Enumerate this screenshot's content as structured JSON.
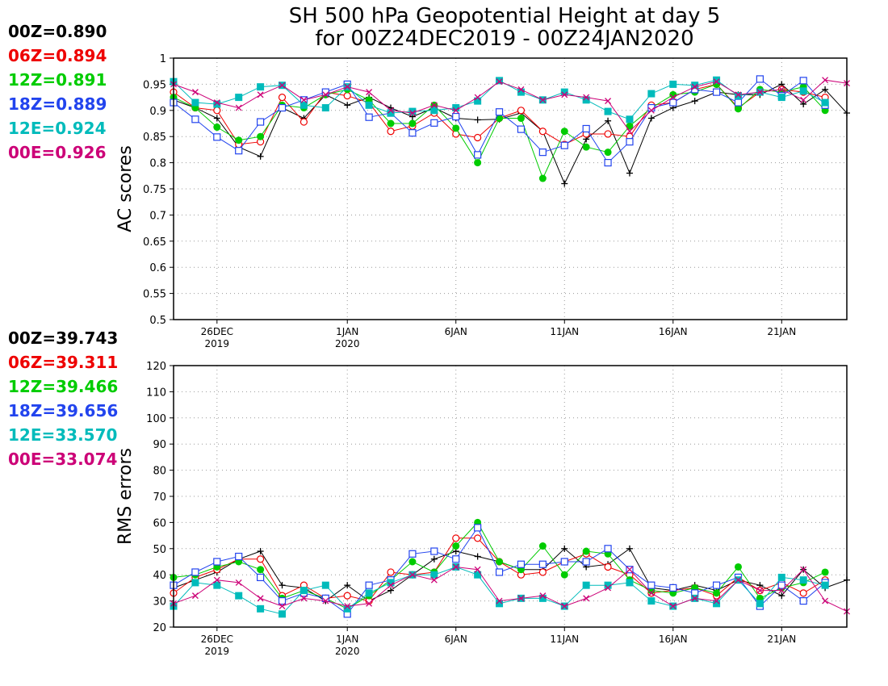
{
  "title": {
    "line1": "SH 500 hPa Geopotential Height at day 5",
    "line2": "for 00Z24DEC2019 - 00Z24JAN2020"
  },
  "colors": {
    "00Z": "#000000",
    "06Z": "#ee0000",
    "12Z": "#00cc00",
    "18Z": "#2244ee",
    "12E": "#00bbbb",
    "00E": "#cc0077"
  },
  "legend_top": [
    {
      "key": "00Z",
      "text": "00Z=0.890"
    },
    {
      "key": "06Z",
      "text": "06Z=0.894"
    },
    {
      "key": "12Z",
      "text": "12Z=0.891"
    },
    {
      "key": "18Z",
      "text": "18Z=0.889"
    },
    {
      "key": "12E",
      "text": "12E=0.924"
    },
    {
      "key": "00E",
      "text": "00E=0.926"
    }
  ],
  "legend_bottom": [
    {
      "key": "00Z",
      "text": "00Z=39.743"
    },
    {
      "key": "06Z",
      "text": "06Z=39.311"
    },
    {
      "key": "12Z",
      "text": "12Z=39.466"
    },
    {
      "key": "18Z",
      "text": "18Z=39.656"
    },
    {
      "key": "12E",
      "text": "12E=33.570"
    },
    {
      "key": "00E",
      "text": "00E=33.074"
    }
  ],
  "chart_data": [
    {
      "type": "line",
      "ylabel": "AC scores",
      "ylim": [
        0.5,
        1.0
      ],
      "yticks": [
        0.5,
        0.55,
        0.6,
        0.65,
        0.7,
        0.75,
        0.8,
        0.85,
        0.9,
        0.95,
        1
      ],
      "ytick_labels": [
        "0.5",
        "0.55",
        "0.6",
        "0.65",
        "0.7",
        "0.75",
        "0.8",
        "0.85",
        "0.9",
        "0.95",
        "1"
      ],
      "xlim": [
        24,
        55
      ],
      "xticks": [
        {
          "x": 26,
          "l1": "26DEC",
          "l2": "2019"
        },
        {
          "x": 32,
          "l1": "1JAN",
          "l2": "2020"
        },
        {
          "x": 37,
          "l1": "6JAN",
          "l2": ""
        },
        {
          "x": 42,
          "l1": "11JAN",
          "l2": ""
        },
        {
          "x": 47,
          "l1": "16JAN",
          "l2": ""
        },
        {
          "x": 52,
          "l1": "21JAN",
          "l2": ""
        }
      ],
      "grid": true,
      "series": [
        {
          "name": "00Z",
          "marker": "plus",
          "x": [
            24,
            25,
            26,
            27,
            28,
            29,
            30,
            31,
            32,
            33,
            34,
            35,
            36,
            37,
            38,
            39,
            40,
            41,
            42,
            43,
            44,
            45,
            46,
            47,
            48,
            49,
            50,
            51,
            52,
            53,
            54,
            55
          ],
          "values": [
            0.92,
            0.905,
            0.885,
            0.83,
            0.812,
            0.905,
            0.885,
            0.93,
            0.91,
            0.925,
            0.905,
            0.888,
            0.905,
            0.885,
            0.882,
            0.883,
            0.895,
            0.86,
            0.76,
            0.845,
            0.88,
            0.78,
            0.885,
            0.905,
            0.918,
            0.935,
            0.93,
            0.93,
            0.95,
            0.912,
            0.94,
            0.895
          ]
        },
        {
          "name": "06Z",
          "marker": "circle",
          "x": [
            24,
            25,
            26,
            27,
            28,
            29,
            30,
            31,
            32,
            33,
            34,
            35,
            36,
            37,
            38,
            39,
            40,
            41,
            42,
            43,
            44,
            45,
            46,
            47,
            48,
            49,
            50,
            51,
            52,
            53,
            54
          ],
          "values": [
            0.935,
            0.905,
            0.9,
            0.835,
            0.84,
            0.925,
            0.878,
            0.935,
            0.928,
            0.915,
            0.86,
            0.87,
            0.895,
            0.855,
            0.848,
            0.885,
            0.9,
            0.86,
            0.835,
            0.855,
            0.855,
            0.85,
            0.91,
            0.915,
            0.94,
            0.95,
            0.905,
            0.935,
            0.94,
            0.935,
            0.925
          ]
        },
        {
          "name": "12Z",
          "marker": "dot",
          "x": [
            24,
            25,
            26,
            27,
            28,
            29,
            30,
            31,
            32,
            33,
            34,
            35,
            36,
            37,
            38,
            39,
            40,
            41,
            42,
            43,
            44,
            45,
            46,
            47,
            48,
            49,
            50,
            51,
            52,
            53,
            54
          ],
          "values": [
            0.925,
            0.905,
            0.868,
            0.843,
            0.85,
            0.91,
            0.905,
            0.93,
            0.94,
            0.92,
            0.875,
            0.875,
            0.91,
            0.866,
            0.8,
            0.885,
            0.885,
            0.77,
            0.86,
            0.83,
            0.82,
            0.87,
            0.905,
            0.93,
            0.935,
            0.95,
            0.903,
            0.94,
            0.935,
            0.945,
            0.9
          ]
        },
        {
          "name": "18Z",
          "marker": "square",
          "x": [
            24,
            25,
            26,
            27,
            28,
            29,
            30,
            31,
            32,
            33,
            34,
            35,
            36,
            37,
            38,
            39,
            40,
            41,
            42,
            43,
            44,
            45,
            46,
            47,
            48,
            49,
            50,
            51,
            52,
            53,
            54
          ],
          "values": [
            0.915,
            0.883,
            0.849,
            0.823,
            0.878,
            0.905,
            0.92,
            0.935,
            0.95,
            0.887,
            0.895,
            0.857,
            0.876,
            0.888,
            0.815,
            0.897,
            0.864,
            0.82,
            0.833,
            0.865,
            0.8,
            0.84,
            0.905,
            0.915,
            0.94,
            0.935,
            0.915,
            0.96,
            0.928,
            0.957,
            0.91
          ]
        },
        {
          "name": "12E",
          "marker": "fsquare",
          "x": [
            24,
            25,
            26,
            27,
            28,
            29,
            30,
            31,
            32,
            33,
            34,
            35,
            36,
            37,
            38,
            39,
            40,
            41,
            42,
            43,
            44,
            45,
            46,
            47,
            48,
            49,
            50,
            51,
            52,
            53,
            54
          ],
          "values": [
            0.955,
            0.915,
            0.912,
            0.925,
            0.945,
            0.948,
            0.91,
            0.905,
            0.945,
            0.91,
            0.895,
            0.898,
            0.9,
            0.905,
            0.918,
            0.957,
            0.935,
            0.92,
            0.935,
            0.92,
            0.898,
            0.883,
            0.932,
            0.95,
            0.948,
            0.958,
            0.928,
            0.935,
            0.925,
            0.937,
            0.915
          ]
        },
        {
          "name": "00E",
          "marker": "x",
          "x": [
            24,
            25,
            26,
            27,
            28,
            29,
            30,
            31,
            32,
            33,
            34,
            35,
            36,
            37,
            38,
            39,
            40,
            41,
            42,
            43,
            44,
            45,
            46,
            47,
            48,
            49,
            50,
            51,
            52,
            53,
            54,
            55
          ],
          "values": [
            0.95,
            0.935,
            0.915,
            0.905,
            0.93,
            0.948,
            0.92,
            0.93,
            0.945,
            0.935,
            0.9,
            0.895,
            0.91,
            0.9,
            0.925,
            0.955,
            0.94,
            0.92,
            0.93,
            0.925,
            0.918,
            0.86,
            0.9,
            0.925,
            0.945,
            0.955,
            0.93,
            0.935,
            0.94,
            0.92,
            0.958,
            0.952
          ]
        }
      ]
    },
    {
      "type": "line",
      "ylabel": "RMS errors",
      "ylim": [
        20,
        120
      ],
      "yticks": [
        20,
        30,
        40,
        50,
        60,
        70,
        80,
        90,
        100,
        110,
        120
      ],
      "ytick_labels": [
        "20",
        "30",
        "40",
        "50",
        "60",
        "70",
        "80",
        "90",
        "100",
        "110",
        "120"
      ],
      "xlim": [
        24,
        55
      ],
      "xticks": [
        {
          "x": 26,
          "l1": "26DEC",
          "l2": "2019"
        },
        {
          "x": 32,
          "l1": "1JAN",
          "l2": "2020"
        },
        {
          "x": 37,
          "l1": "6JAN",
          "l2": ""
        },
        {
          "x": 42,
          "l1": "11JAN",
          "l2": ""
        },
        {
          "x": 47,
          "l1": "16JAN",
          "l2": ""
        },
        {
          "x": 52,
          "l1": "21JAN",
          "l2": ""
        }
      ],
      "grid": true,
      "series": [
        {
          "name": "00Z",
          "marker": "plus",
          "x": [
            24,
            25,
            26,
            27,
            28,
            29,
            30,
            31,
            32,
            33,
            34,
            35,
            36,
            37,
            38,
            39,
            40,
            41,
            42,
            43,
            44,
            45,
            46,
            47,
            48,
            49,
            50,
            51,
            52,
            53,
            54,
            55
          ],
          "values": [
            35,
            38,
            41,
            46,
            49,
            36,
            35,
            30,
            36,
            30,
            34,
            40,
            46,
            49,
            47,
            45,
            42,
            42,
            50,
            43,
            44,
            50,
            35,
            34,
            36,
            34,
            38,
            36,
            32,
            42,
            35,
            38
          ]
        },
        {
          "name": "06Z",
          "marker": "circle",
          "x": [
            24,
            25,
            26,
            27,
            28,
            29,
            30,
            31,
            32,
            33,
            34,
            35,
            36,
            37,
            38,
            39,
            40,
            41,
            42,
            43,
            44,
            45,
            46,
            47,
            48,
            49,
            50,
            51,
            52,
            53,
            54
          ],
          "values": [
            33,
            39,
            42,
            46,
            46,
            32,
            36,
            31,
            32,
            30,
            41,
            40,
            41,
            54,
            54,
            45,
            40,
            41,
            45,
            48,
            43,
            40,
            33,
            34,
            35,
            32,
            39,
            34,
            37,
            33,
            38
          ]
        },
        {
          "name": "12Z",
          "marker": "dot",
          "x": [
            24,
            25,
            26,
            27,
            28,
            29,
            30,
            31,
            32,
            33,
            34,
            35,
            36,
            37,
            38,
            39,
            40,
            41,
            42,
            43,
            44,
            45,
            46,
            47,
            48,
            49,
            50,
            51,
            52,
            53,
            54
          ],
          "values": [
            39,
            40,
            43,
            45,
            42,
            31,
            34,
            31,
            27,
            32,
            38,
            45,
            41,
            51,
            60,
            45,
            42,
            51,
            40,
            49,
            48,
            38,
            34,
            33,
            35,
            33,
            43,
            31,
            35,
            37,
            41
          ]
        },
        {
          "name": "18Z",
          "marker": "square",
          "x": [
            24,
            25,
            26,
            27,
            28,
            29,
            30,
            31,
            32,
            33,
            34,
            35,
            36,
            37,
            38,
            39,
            40,
            41,
            42,
            43,
            44,
            45,
            46,
            47,
            48,
            49,
            50,
            51,
            52,
            53,
            54
          ],
          "values": [
            36,
            41,
            45,
            47,
            39,
            30,
            33,
            31,
            25,
            36,
            38,
            48,
            49,
            46,
            58,
            41,
            44,
            44,
            45,
            45,
            50,
            42,
            36,
            35,
            33,
            36,
            39,
            28,
            36,
            30,
            37
          ]
        },
        {
          "name": "12E",
          "marker": "fsquare",
          "x": [
            24,
            25,
            26,
            27,
            28,
            29,
            30,
            31,
            32,
            33,
            34,
            35,
            36,
            37,
            38,
            39,
            40,
            41,
            42,
            43,
            44,
            45,
            46,
            47,
            48,
            49,
            50,
            51,
            52,
            53,
            54
          ],
          "values": [
            28,
            37,
            36,
            32,
            27,
            25,
            34,
            36,
            27,
            33,
            37,
            40,
            40,
            43,
            40,
            29,
            31,
            31,
            28,
            36,
            36,
            37,
            30,
            28,
            31,
            29,
            38,
            29,
            39,
            38,
            36
          ]
        },
        {
          "name": "00E",
          "marker": "x",
          "x": [
            24,
            25,
            26,
            27,
            28,
            29,
            30,
            31,
            32,
            33,
            34,
            35,
            36,
            37,
            38,
            39,
            40,
            41,
            42,
            43,
            44,
            45,
            46,
            47,
            48,
            49,
            50,
            51,
            52,
            53,
            54,
            55
          ],
          "values": [
            29,
            32,
            38,
            37,
            31,
            28,
            31,
            30,
            28,
            29,
            36,
            40,
            38,
            43,
            42,
            30,
            31,
            32,
            28,
            31,
            35,
            42,
            33,
            28,
            31,
            30,
            38,
            34,
            34,
            42,
            30,
            26
          ]
        }
      ]
    }
  ]
}
